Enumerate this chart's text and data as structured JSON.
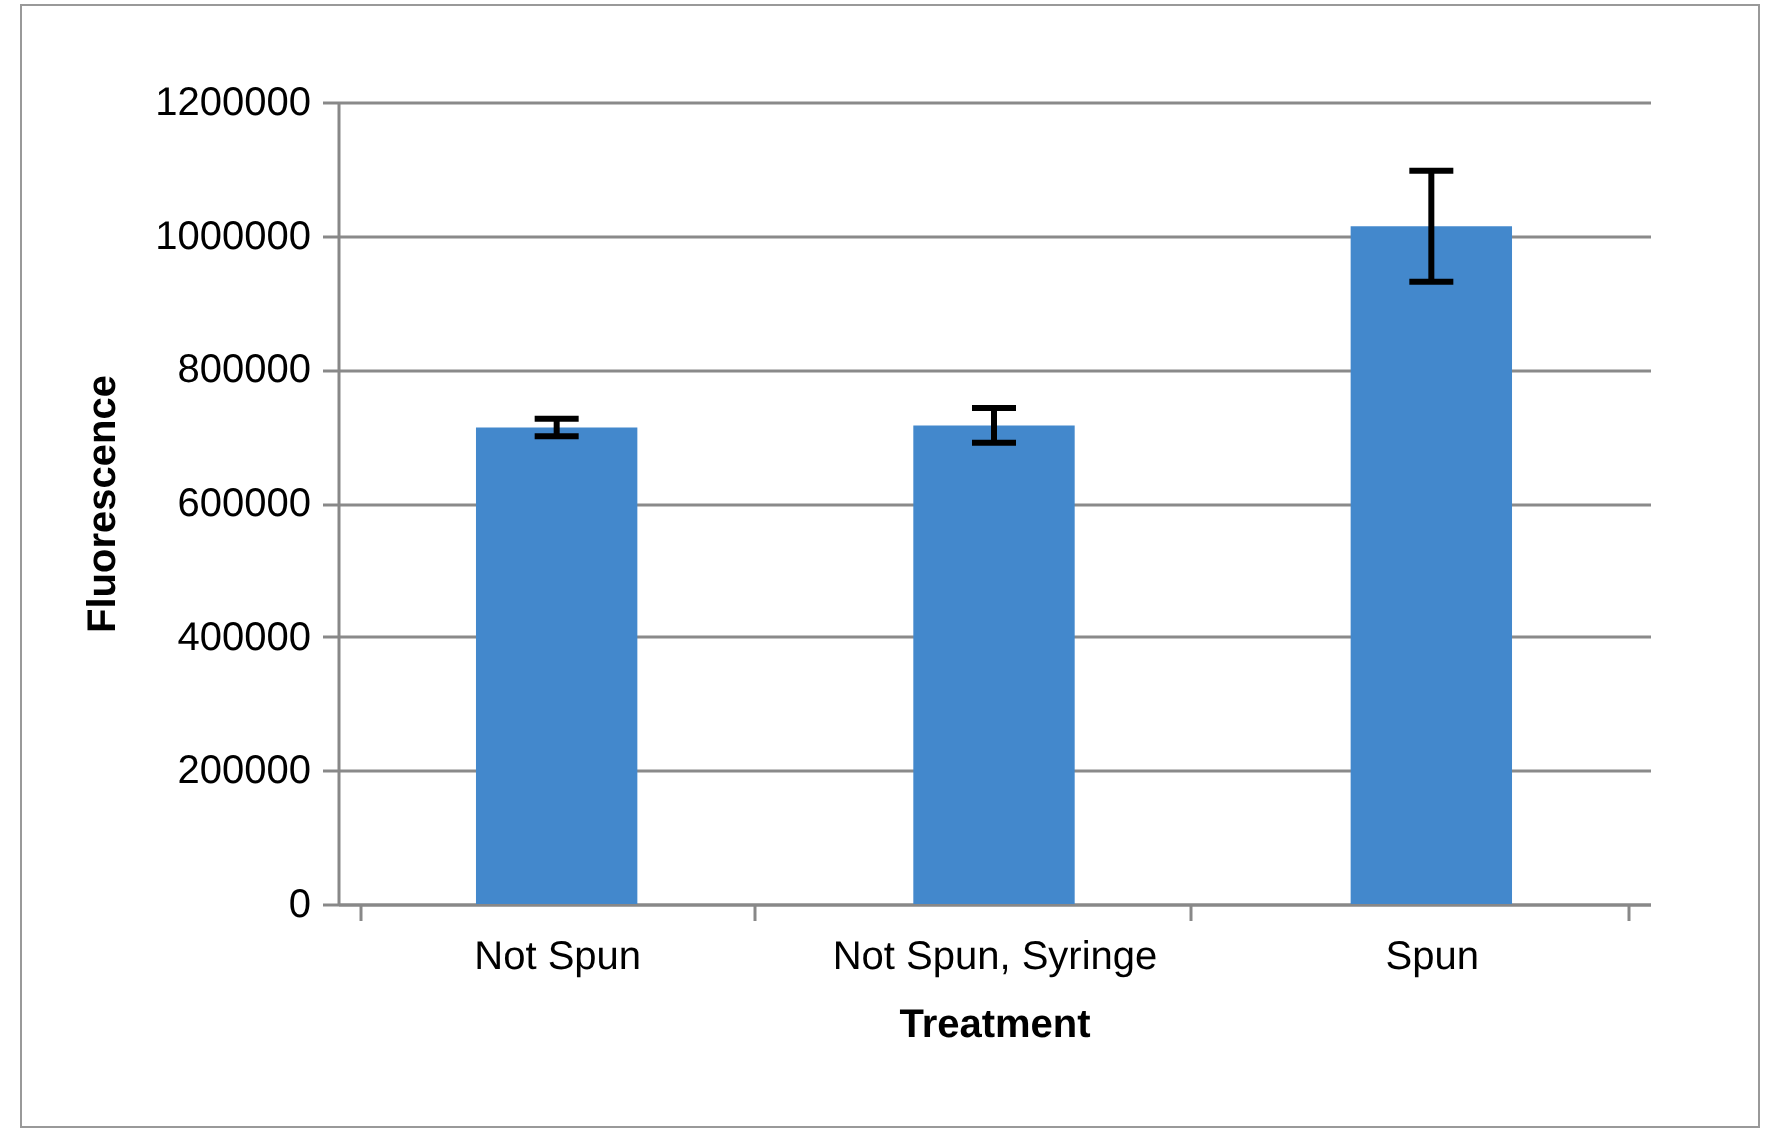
{
  "chart_data": {
    "type": "bar",
    "xlabel": "Treatment",
    "ylabel": "Fluorescence",
    "categories": [
      "Not Spun",
      "Not Spun, Syringe",
      "Spun"
    ],
    "values": [
      713000,
      716000,
      1014000
    ],
    "errors": [
      13000,
      26000,
      83000
    ],
    "color": "#4388cc",
    "ylim": [
      0,
      1200000
    ],
    "yticks": [
      0,
      200000,
      400000,
      600000,
      800000,
      1000000,
      1200000
    ],
    "grid": "y"
  }
}
